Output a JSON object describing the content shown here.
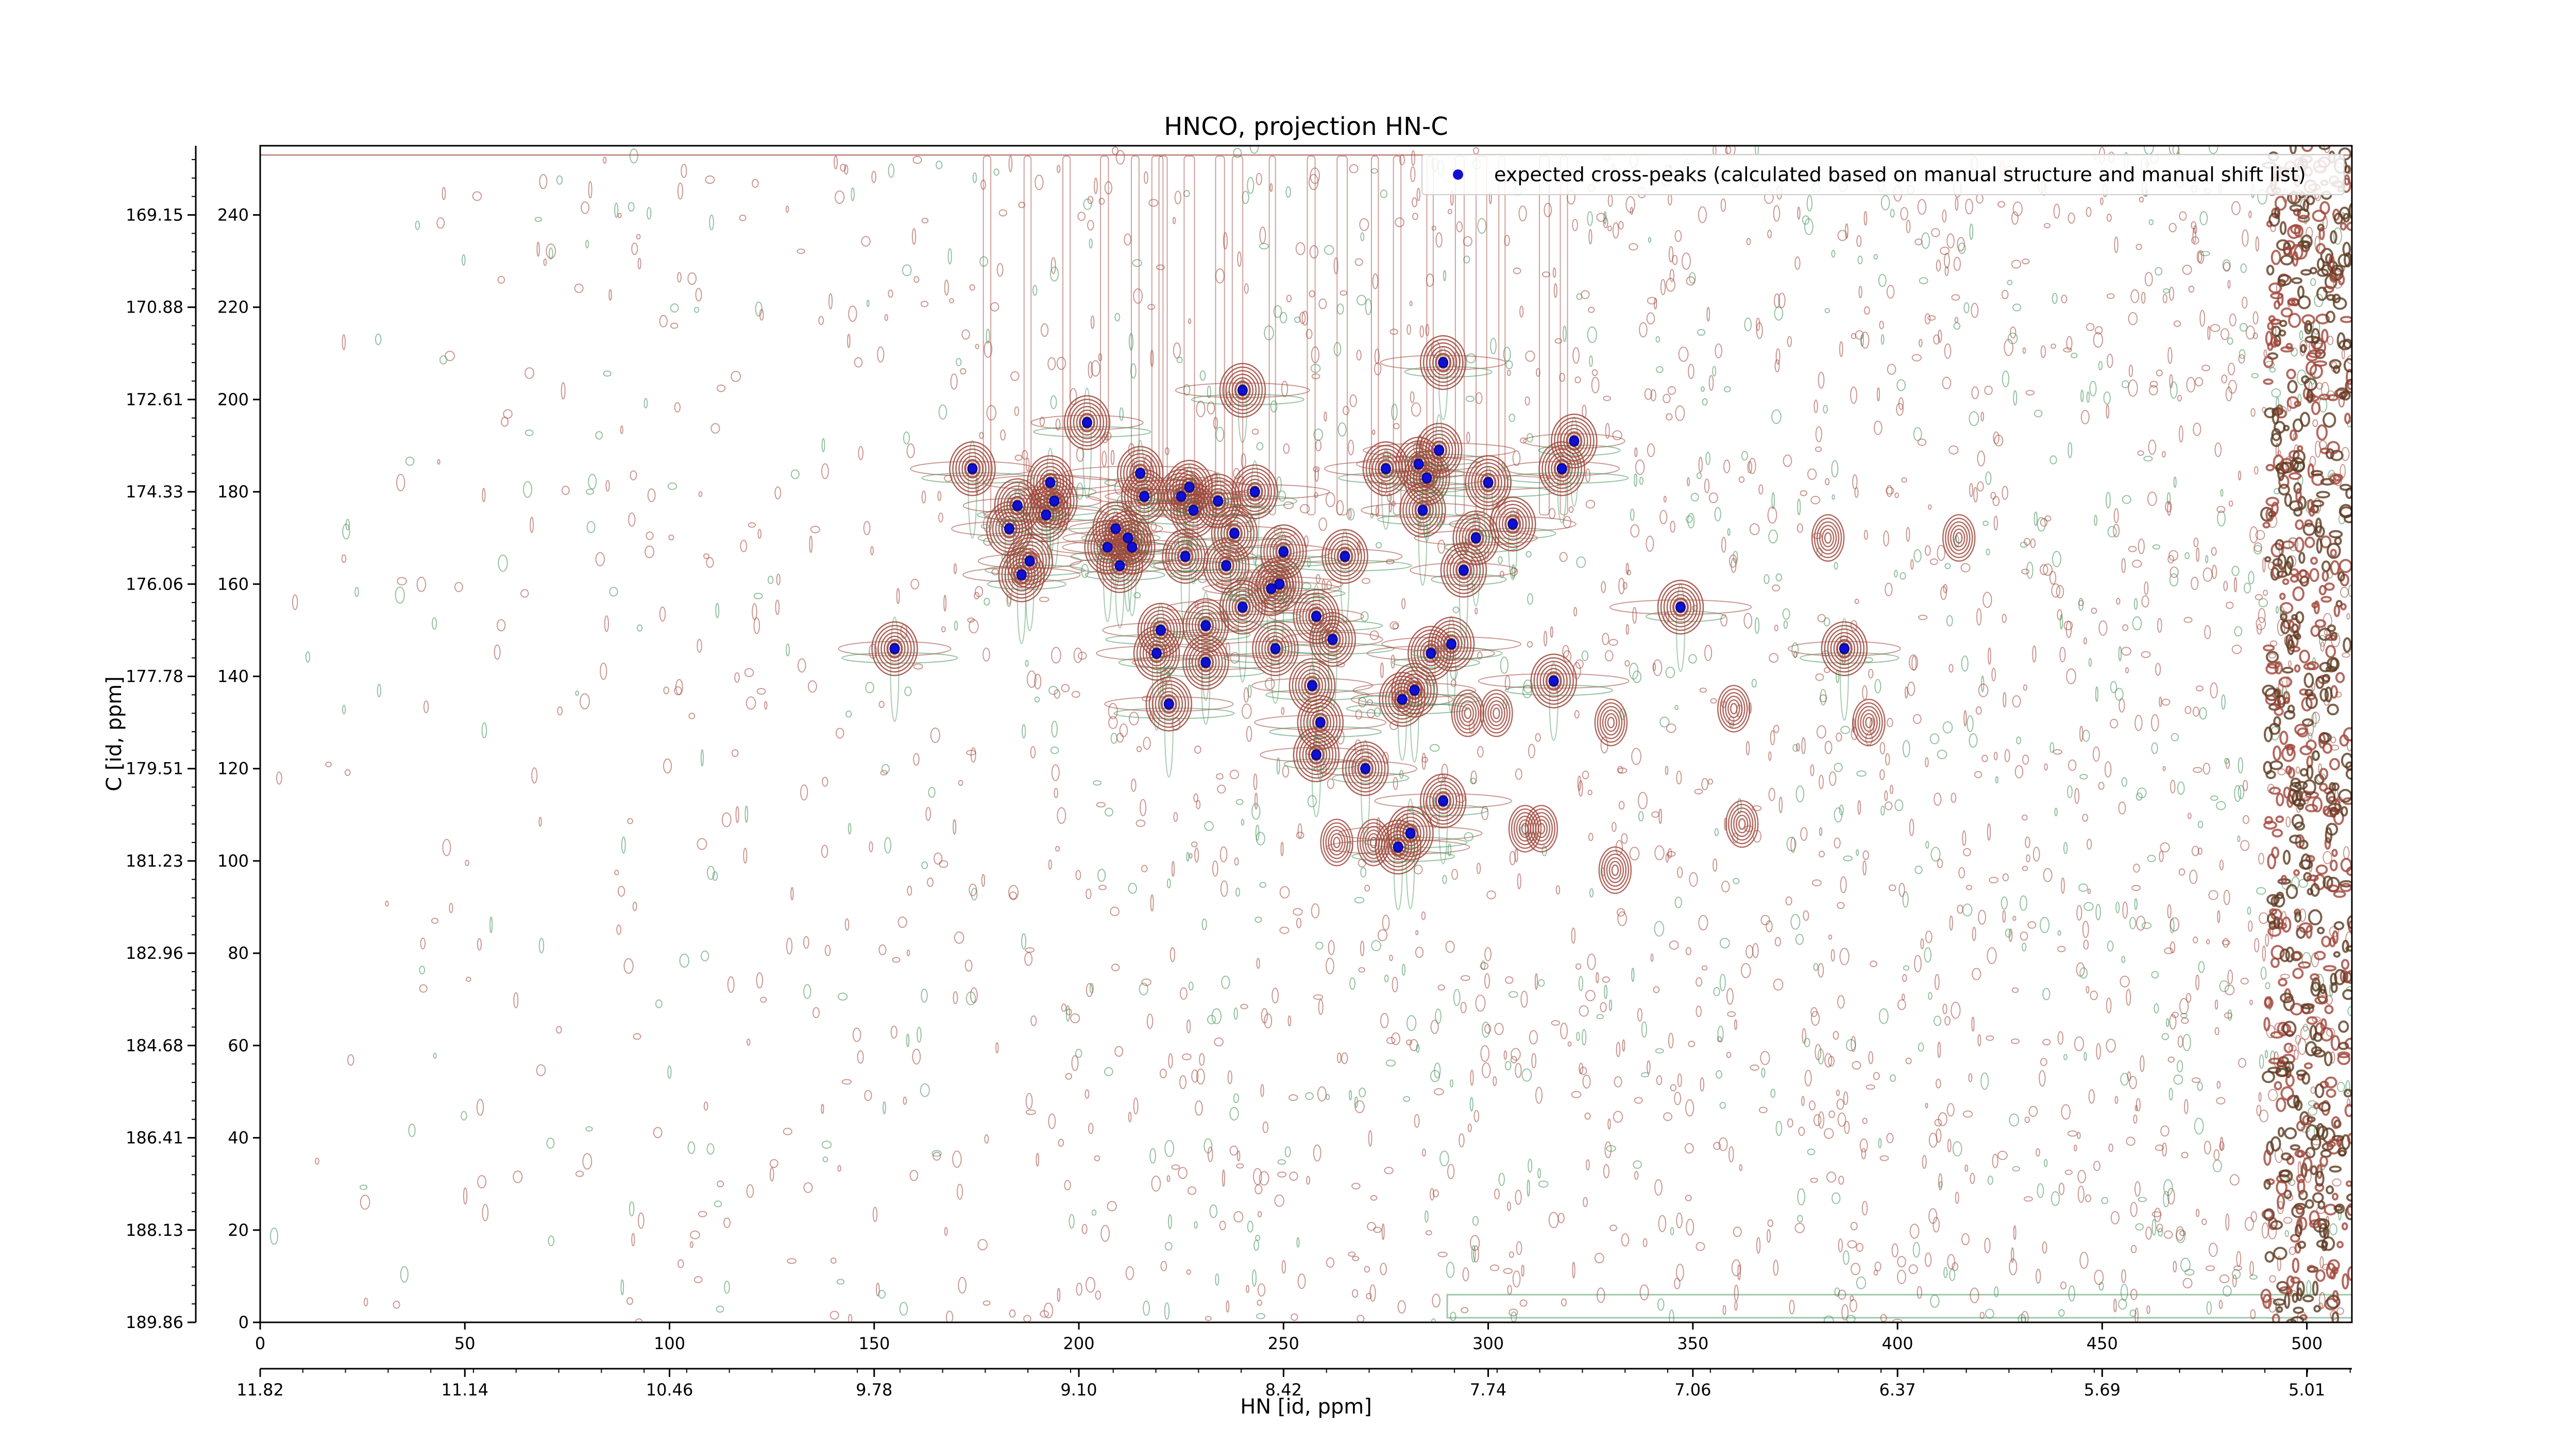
{
  "chart_data": {
    "type": "scatter",
    "title": "HNCO, projection HN-C",
    "xlabel": "HN [id, ppm]",
    "ylabel": "C [id, ppm]",
    "x_index_ticks": [
      "0",
      "50",
      "100",
      "150",
      "200",
      "250",
      "300",
      "350",
      "400",
      "450",
      "500"
    ],
    "x_ppm_ticks": [
      "11.82",
      "11.14",
      "10.46",
      "9.78",
      "9.10",
      "8.42",
      "7.74",
      "7.06",
      "6.37",
      "5.69",
      "5.01"
    ],
    "y_index_ticks": [
      "0",
      "20",
      "40",
      "60",
      "80",
      "100",
      "120",
      "140",
      "160",
      "180",
      "200",
      "220",
      "240"
    ],
    "y_ppm_ticks": [
      "189.86",
      "188.13",
      "186.41",
      "184.68",
      "182.96",
      "181.23",
      "179.51",
      "177.78",
      "176.06",
      "174.33",
      "172.61",
      "170.88",
      "169.15"
    ],
    "xlim": [
      0,
      511
    ],
    "ylim": [
      0,
      255
    ],
    "legend": {
      "label": "expected cross-peaks (calculated based on manual structure and manual shift list)",
      "placement": "top-right"
    },
    "colors": {
      "positive_contour": "#a0453a",
      "negative_contour": "#3f8f55",
      "marker": "#1010d0"
    },
    "series": [
      {
        "name": "expected cross-peaks (calculated based on manual structure and manual shift list)",
        "points": [
          [
            174,
            185
          ],
          [
            183,
            172
          ],
          [
            185,
            177
          ],
          [
            192,
            175
          ],
          [
            193,
            182
          ],
          [
            194,
            178
          ],
          [
            188,
            165
          ],
          [
            186,
            162
          ],
          [
            202,
            195
          ],
          [
            207,
            168
          ],
          [
            209,
            172
          ],
          [
            212,
            170
          ],
          [
            210,
            164
          ],
          [
            215,
            184
          ],
          [
            216,
            179
          ],
          [
            213,
            168
          ],
          [
            220,
            150
          ],
          [
            219,
            145
          ],
          [
            222,
            134
          ],
          [
            225,
            179
          ],
          [
            227,
            181
          ],
          [
            226,
            166
          ],
          [
            228,
            176
          ],
          [
            231,
            151
          ],
          [
            231,
            143
          ],
          [
            234,
            178
          ],
          [
            236,
            164
          ],
          [
            238,
            171
          ],
          [
            240,
            155
          ],
          [
            240,
            202
          ],
          [
            243,
            180
          ],
          [
            247,
            159
          ],
          [
            249,
            160
          ],
          [
            250,
            167
          ],
          [
            248,
            146
          ],
          [
            257,
            138
          ],
          [
            258,
            153
          ],
          [
            259,
            130
          ],
          [
            258,
            123
          ],
          [
            262,
            148
          ],
          [
            265,
            166
          ],
          [
            270,
            120
          ],
          [
            275,
            185
          ],
          [
            278,
            103
          ],
          [
            279,
            135
          ],
          [
            281,
            106
          ],
          [
            282,
            137
          ],
          [
            283,
            186
          ],
          [
            284,
            176
          ],
          [
            285,
            183
          ],
          [
            286,
            145
          ],
          [
            288,
            189
          ],
          [
            289,
            208
          ],
          [
            289,
            113
          ],
          [
            291,
            147
          ],
          [
            294,
            163
          ],
          [
            297,
            170
          ],
          [
            300,
            182
          ],
          [
            306,
            173
          ],
          [
            316,
            139
          ],
          [
            318,
            185
          ],
          [
            321,
            191
          ],
          [
            347,
            155
          ],
          [
            387,
            146
          ],
          [
            155,
            146
          ]
        ]
      }
    ]
  }
}
